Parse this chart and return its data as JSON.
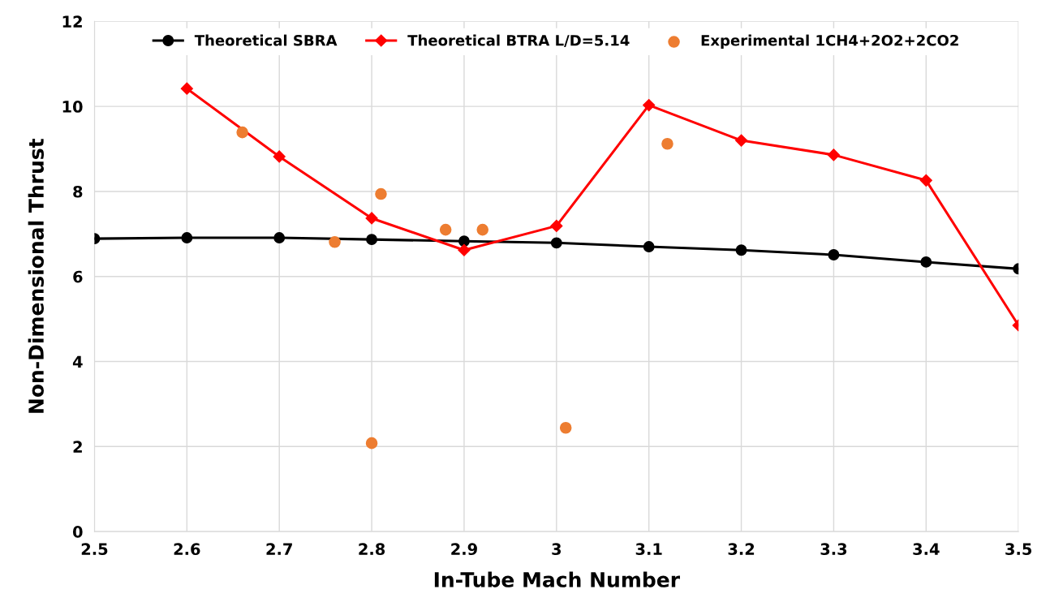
{
  "chart_data": {
    "type": "line",
    "xlabel": "In-Tube Mach Number",
    "ylabel": "Non-Dimensional Thrust",
    "xlim": [
      2.5,
      3.5
    ],
    "xticks": [
      2.5,
      2.6,
      2.7,
      2.8,
      2.9,
      3,
      3.1,
      3.2,
      3.3,
      3.4,
      3.5
    ],
    "ylim": [
      0,
      12
    ],
    "yticks": [
      0,
      2,
      4,
      6,
      8,
      10,
      12
    ],
    "grid": true,
    "legend": "top",
    "series": [
      {
        "name": "Theoretical SBRA",
        "color": "#000000",
        "marker": "circle",
        "x": [
          2.5,
          2.6,
          2.7,
          2.8,
          2.9,
          3.0,
          3.1,
          3.2,
          3.3,
          3.4,
          3.5
        ],
        "values": [
          6.89,
          6.91,
          6.91,
          6.87,
          6.83,
          6.79,
          6.7,
          6.62,
          6.51,
          6.34,
          6.18
        ]
      },
      {
        "name": "Theoretical BTRA L/D=5.14",
        "color": "#ff0000",
        "marker": "diamond",
        "x": [
          2.6,
          2.7,
          2.8,
          2.9,
          3.0,
          3.1,
          3.2,
          3.3,
          3.4,
          3.5
        ],
        "values": [
          10.42,
          8.82,
          7.37,
          6.62,
          7.19,
          10.03,
          9.2,
          8.86,
          8.26,
          4.85
        ]
      },
      {
        "name": "Experimental 1CH4+2O2+2CO2",
        "type": "scatter",
        "color": "#ed7d31",
        "marker": "circle",
        "x": [
          2.66,
          2.76,
          2.8,
          2.81,
          2.88,
          2.92,
          3.01,
          3.12
        ],
        "values": [
          9.39,
          6.81,
          2.08,
          7.94,
          7.1,
          7.1,
          2.44,
          9.12
        ]
      }
    ]
  }
}
